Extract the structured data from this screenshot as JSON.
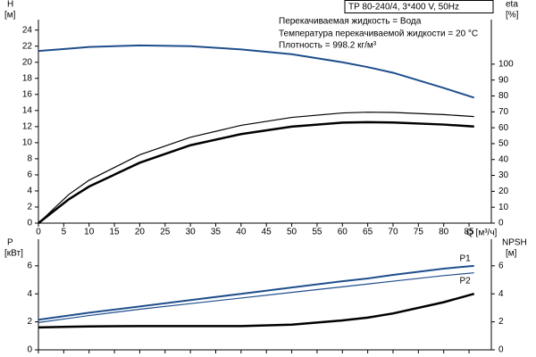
{
  "chart_data": [
    {
      "type": "line",
      "header": "TP 80-240/4, 3*400 V, 50Hz",
      "annotations": [
        "Перекачиваемая жидкость = Вода",
        "Температура перекачиваемой жидкости = 20 °C",
        "Плотность = 998.2 кг/м³"
      ],
      "y_label": "H",
      "y_unit": "[м]",
      "y2_label": "eta",
      "y2_unit": "[%]",
      "x_label": "Q [м³/ч]",
      "x": [
        0,
        6,
        10,
        20,
        30,
        40,
        50,
        60,
        65,
        70,
        80,
        86
      ],
      "xlim": [
        0,
        89.4
      ],
      "xticks": [
        0,
        5,
        10,
        15,
        20,
        25,
        30,
        35,
        40,
        45,
        50,
        55,
        60,
        65,
        70,
        75,
        80,
        85
      ],
      "ylim": [
        0,
        25.3
      ],
      "yticks": [
        0,
        2,
        4,
        6,
        8,
        10,
        12,
        14,
        16,
        18,
        20,
        22,
        24
      ],
      "y2lim": [
        0,
        128
      ],
      "y2ticks": [
        0,
        10,
        20,
        30,
        40,
        50,
        60,
        70,
        80,
        90,
        100
      ],
      "series": [
        {
          "color": "#1f4e8c",
          "line_width": 2,
          "values": [
            21.4,
            21.7,
            21.9,
            22.1,
            22.0,
            21.6,
            21.0,
            20.0,
            19.4,
            18.7,
            16.8,
            15.6
          ]
        },
        {
          "color": "#000000",
          "line_width": 1.2,
          "axis": "y2",
          "values": [
            0,
            18,
            27,
            43,
            54,
            61.5,
            66.5,
            69.3,
            69.8,
            69.6,
            68.3,
            67
          ]
        },
        {
          "color": "#000000",
          "line_width": 2.5,
          "axis": "y2",
          "values": [
            0,
            15,
            23,
            38,
            49,
            56,
            60.7,
            63.2,
            63.5,
            63.3,
            62,
            60.8
          ]
        }
      ]
    },
    {
      "type": "line",
      "y_label": "P",
      "y_unit": "[кВт]",
      "y2_label": "NPSH",
      "y2_unit": "[м]",
      "x": [
        0,
        6,
        10,
        20,
        30,
        40,
        50,
        60,
        65,
        70,
        80,
        86
      ],
      "xlim": [
        0,
        89.4
      ],
      "ylim": [
        0,
        7.9
      ],
      "yticks": [
        0,
        2,
        4,
        6
      ],
      "y2lim": [
        0,
        7.9
      ],
      "y2ticks": [
        0,
        2,
        4,
        6
      ],
      "series": [
        {
          "name": "P1",
          "color": "#1f4e8c",
          "line_width": 2,
          "values": [
            2.15,
            2.45,
            2.65,
            3.1,
            3.55,
            4.0,
            4.45,
            4.9,
            5.1,
            5.35,
            5.8,
            6.0
          ]
        },
        {
          "name": "P2",
          "color": "#1f4e8c",
          "line_width": 1.2,
          "values": [
            1.95,
            2.25,
            2.45,
            2.9,
            3.3,
            3.7,
            4.1,
            4.5,
            4.7,
            4.9,
            5.3,
            5.5
          ]
        },
        {
          "color": "#000000",
          "line_width": 2.5,
          "axis": "y2",
          "values": [
            1.6,
            1.65,
            1.67,
            1.7,
            1.7,
            1.7,
            1.8,
            2.1,
            2.3,
            2.6,
            3.4,
            4.0
          ]
        }
      ]
    }
  ]
}
